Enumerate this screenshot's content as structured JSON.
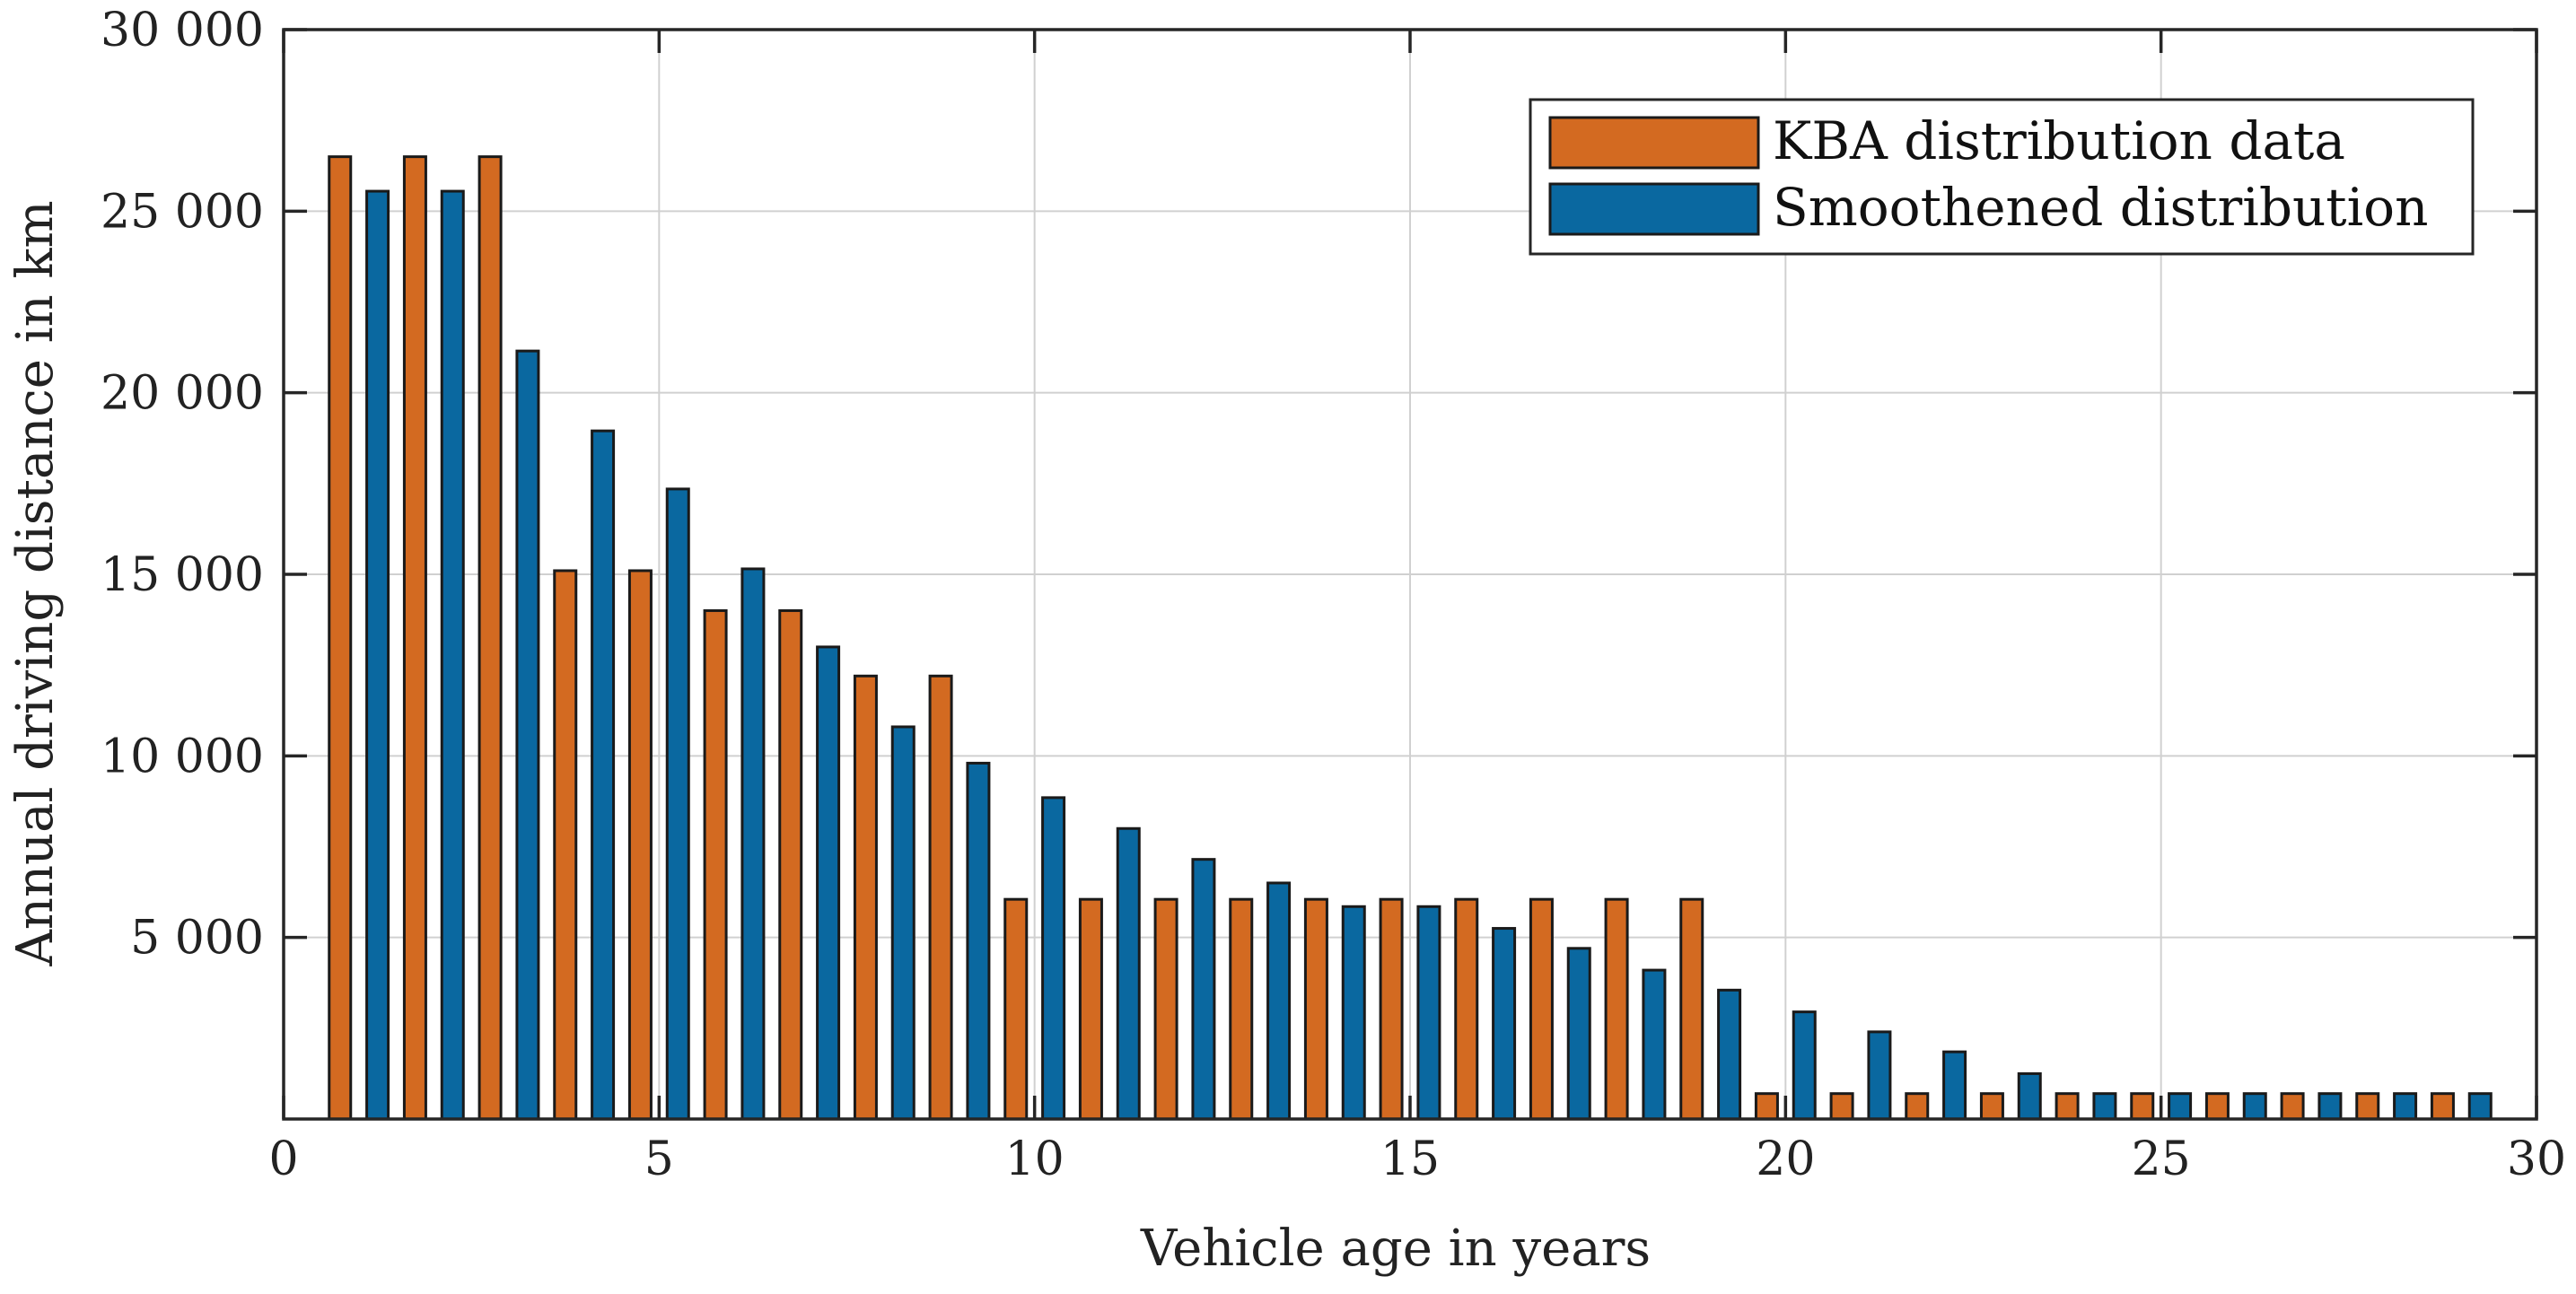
{
  "chart_data": {
    "type": "bar",
    "title": "",
    "xlabel": "Vehicle age in years",
    "ylabel": "Annual driving distance in km",
    "xlim": [
      0,
      30
    ],
    "ylim": [
      0,
      30000
    ],
    "xticks": [
      0,
      5,
      10,
      15,
      20,
      25,
      30
    ],
    "xtick_labels": [
      "0",
      "5",
      "10",
      "15",
      "20",
      "25",
      "30"
    ],
    "yticks": [
      5000,
      10000,
      15000,
      20000,
      25000,
      30000
    ],
    "ytick_labels": [
      "5 000",
      "10 000",
      "15 000",
      "20 000",
      "25 000",
      "30 000"
    ],
    "grid": true,
    "legend_position": "top-right",
    "categories": [
      1,
      2,
      3,
      4,
      5,
      6,
      7,
      8,
      9,
      10,
      11,
      12,
      13,
      14,
      15,
      16,
      17,
      18,
      19,
      20,
      21,
      22,
      23,
      24,
      25,
      26,
      27,
      28,
      29
    ],
    "series": [
      {
        "name": "KBA distribution data",
        "color": "#D36A21",
        "offset": -0.25,
        "values": [
          26500,
          26500,
          26500,
          15100,
          15100,
          14000,
          14000,
          12200,
          12200,
          6050,
          6050,
          6050,
          6050,
          6050,
          6050,
          6050,
          6050,
          6050,
          6050,
          700,
          700,
          700,
          700,
          700,
          700,
          700,
          700,
          700,
          700
        ]
      },
      {
        "name": "Smoothened distribution",
        "color": "#0A68A0",
        "offset": 0.25,
        "values": [
          25550,
          25550,
          21150,
          18950,
          17350,
          15150,
          13000,
          10800,
          9800,
          8850,
          8000,
          7150,
          6500,
          5850,
          5850,
          5250,
          4700,
          4100,
          3550,
          2950,
          2400,
          1850,
          1250,
          700,
          700,
          700,
          700,
          700,
          700
        ]
      }
    ]
  }
}
